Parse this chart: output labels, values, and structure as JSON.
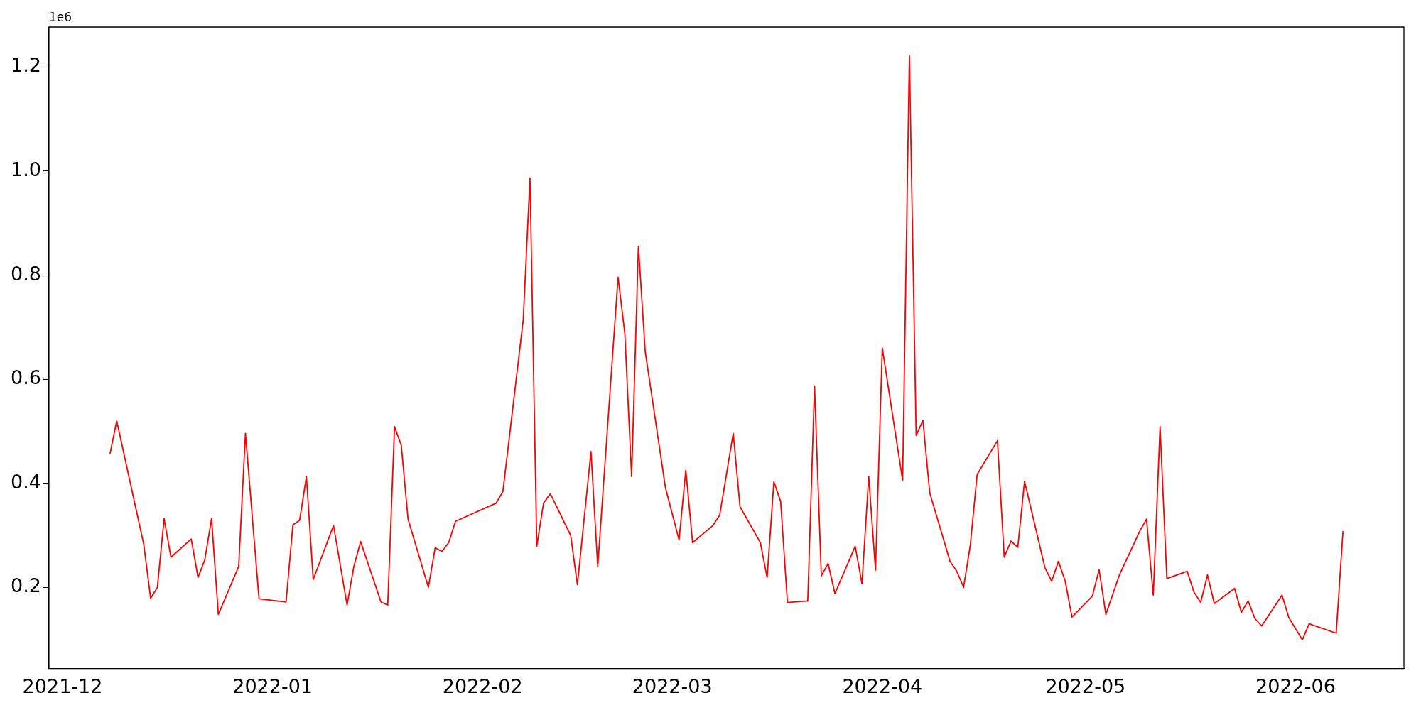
{
  "chart_data": {
    "type": "line",
    "annotations": [
      "1e6"
    ],
    "x": [
      "2021-12-08",
      "2021-12-09",
      "2021-12-13",
      "2021-12-14",
      "2021-12-15",
      "2021-12-16",
      "2021-12-17",
      "2021-12-20",
      "2021-12-21",
      "2021-12-22",
      "2021-12-23",
      "2021-12-24",
      "2021-12-27",
      "2021-12-28",
      "2021-12-30",
      "2022-01-03",
      "2022-01-04",
      "2022-01-05",
      "2022-01-06",
      "2022-01-07",
      "2022-01-10",
      "2022-01-12",
      "2022-01-13",
      "2022-01-14",
      "2022-01-17",
      "2022-01-18",
      "2022-01-19",
      "2022-01-20",
      "2022-01-21",
      "2022-01-24",
      "2022-01-25",
      "2022-01-26",
      "2022-01-27",
      "2022-01-28",
      "2022-02-03",
      "2022-02-04",
      "2022-02-07",
      "2022-02-08",
      "2022-02-09",
      "2022-02-10",
      "2022-02-11",
      "2022-02-14",
      "2022-02-15",
      "2022-02-17",
      "2022-02-18",
      "2022-02-21",
      "2022-02-22",
      "2022-02-23",
      "2022-02-24",
      "2022-02-25",
      "2022-02-28",
      "2022-03-02",
      "2022-03-03",
      "2022-03-04",
      "2022-03-07",
      "2022-03-08",
      "2022-03-10",
      "2022-03-11",
      "2022-03-14",
      "2022-03-15",
      "2022-03-16",
      "2022-03-17",
      "2022-03-18",
      "2022-03-21",
      "2022-03-22",
      "2022-03-23",
      "2022-03-24",
      "2022-03-25",
      "2022-03-28",
      "2022-03-29",
      "2022-03-30",
      "2022-03-31",
      "2022-04-01",
      "2022-04-04",
      "2022-04-05",
      "2022-04-06",
      "2022-04-07",
      "2022-04-08",
      "2022-04-11",
      "2022-04-12",
      "2022-04-13",
      "2022-04-14",
      "2022-04-15",
      "2022-04-18",
      "2022-04-19",
      "2022-04-20",
      "2022-04-21",
      "2022-04-22",
      "2022-04-25",
      "2022-04-26",
      "2022-04-27",
      "2022-04-28",
      "2022-04-29",
      "2022-05-02",
      "2022-05-03",
      "2022-05-04",
      "2022-05-06",
      "2022-05-09",
      "2022-05-10",
      "2022-05-11",
      "2022-05-12",
      "2022-05-13",
      "2022-05-16",
      "2022-05-17",
      "2022-05-18",
      "2022-05-19",
      "2022-05-20",
      "2022-05-23",
      "2022-05-24",
      "2022-05-25",
      "2022-05-26",
      "2022-05-27",
      "2022-05-30",
      "2022-05-31",
      "2022-06-02",
      "2022-06-03",
      "2022-06-07",
      "2022-06-08"
    ],
    "series": [
      {
        "color": "#ff0000",
        "values": [
          0.456,
          0.52,
          0.282,
          0.179,
          0.2,
          0.332,
          0.258,
          0.293,
          0.219,
          0.253,
          0.332,
          0.148,
          0.24,
          0.496,
          0.178,
          0.172,
          0.32,
          0.329,
          0.413,
          0.215,
          0.319,
          0.166,
          0.24,
          0.288,
          0.172,
          0.166,
          0.509,
          0.473,
          0.331,
          0.2,
          0.276,
          0.269,
          0.286,
          0.327,
          0.362,
          0.384,
          0.714,
          0.987,
          0.279,
          0.362,
          0.38,
          0.3,
          0.205,
          0.461,
          0.24,
          0.796,
          0.688,
          0.413,
          0.856,
          0.654,
          0.391,
          0.291,
          0.425,
          0.286,
          0.319,
          0.339,
          0.496,
          0.355,
          0.286,
          0.219,
          0.403,
          0.365,
          0.171,
          0.174,
          0.587,
          0.222,
          0.246,
          0.188,
          0.279,
          0.207,
          0.413,
          0.233,
          0.66,
          0.406,
          1.222,
          0.492,
          0.521,
          0.382,
          0.25,
          0.231,
          0.2,
          0.282,
          0.417,
          0.482,
          0.258,
          0.289,
          0.277,
          0.404,
          0.238,
          0.212,
          0.25,
          0.212,
          0.143,
          0.183,
          0.234,
          0.148,
          0.224,
          0.308,
          0.331,
          0.185,
          0.509,
          0.217,
          0.231,
          0.191,
          0.171,
          0.224,
          0.169,
          0.198,
          0.152,
          0.174,
          0.14,
          0.126,
          0.185,
          0.142,
          0.099,
          0.13,
          0.112,
          0.308
        ]
      }
    ],
    "xlim": [
      "2021-11-29",
      "2022-06-17"
    ],
    "xticks": [
      {
        "value": "2021-12-01",
        "label": "2021-12"
      },
      {
        "value": "2022-01-01",
        "label": "2022-01"
      },
      {
        "value": "2022-02-01",
        "label": "2022-02"
      },
      {
        "value": "2022-03-01",
        "label": "2022-03"
      },
      {
        "value": "2022-04-01",
        "label": "2022-04"
      },
      {
        "value": "2022-05-01",
        "label": "2022-05"
      },
      {
        "value": "2022-06-01",
        "label": "2022-06"
      }
    ],
    "ylim": [
      0.044,
      1.277
    ],
    "yticks": [
      0.2,
      0.4,
      0.6,
      0.8,
      {
        "value": 1.0,
        "label": "1.0"
      },
      1.2
    ],
    "grid": false,
    "legend": false,
    "line_style": "solid",
    "marker": "none"
  }
}
